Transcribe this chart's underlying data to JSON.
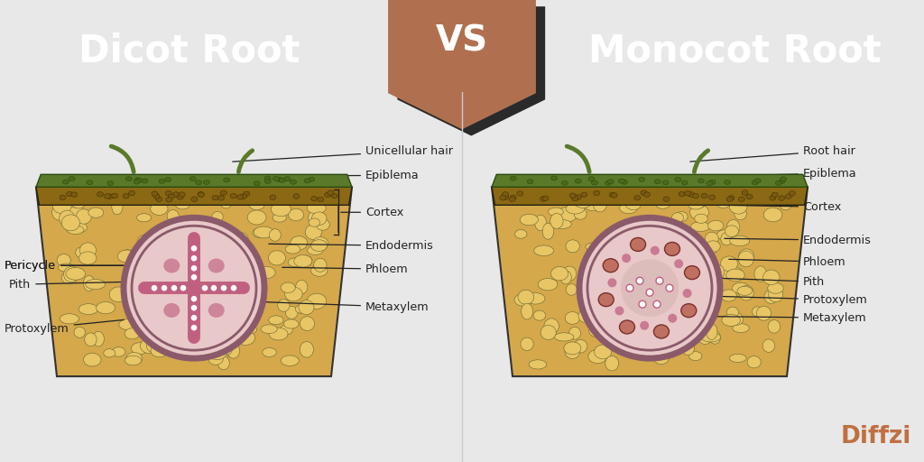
{
  "bg_color": "#e8e8e8",
  "header_left_color": "#3a3a3a",
  "header_right_color": "#4a4a4a",
  "vs_banner_color": "#b07050",
  "vs_shadow_color": "#2a2a2a",
  "title_left": "Dicot Root",
  "title_right": "Monocot Root",
  "vs_text": "VS",
  "brand_text": "Diffzi",
  "brand_color": "#c07040",
  "cortex_color": "#d4a84b",
  "epiblema_color": "#8b6914",
  "green_hair_color": "#5a7a2a",
  "vascular_bg": "#e8c8c8",
  "pericycle_ring_color": "#8b5a6a",
  "xylem_cross_color": "#c06080",
  "annotation_color": "#222222",
  "diagram_bg": "#f5f5f5"
}
